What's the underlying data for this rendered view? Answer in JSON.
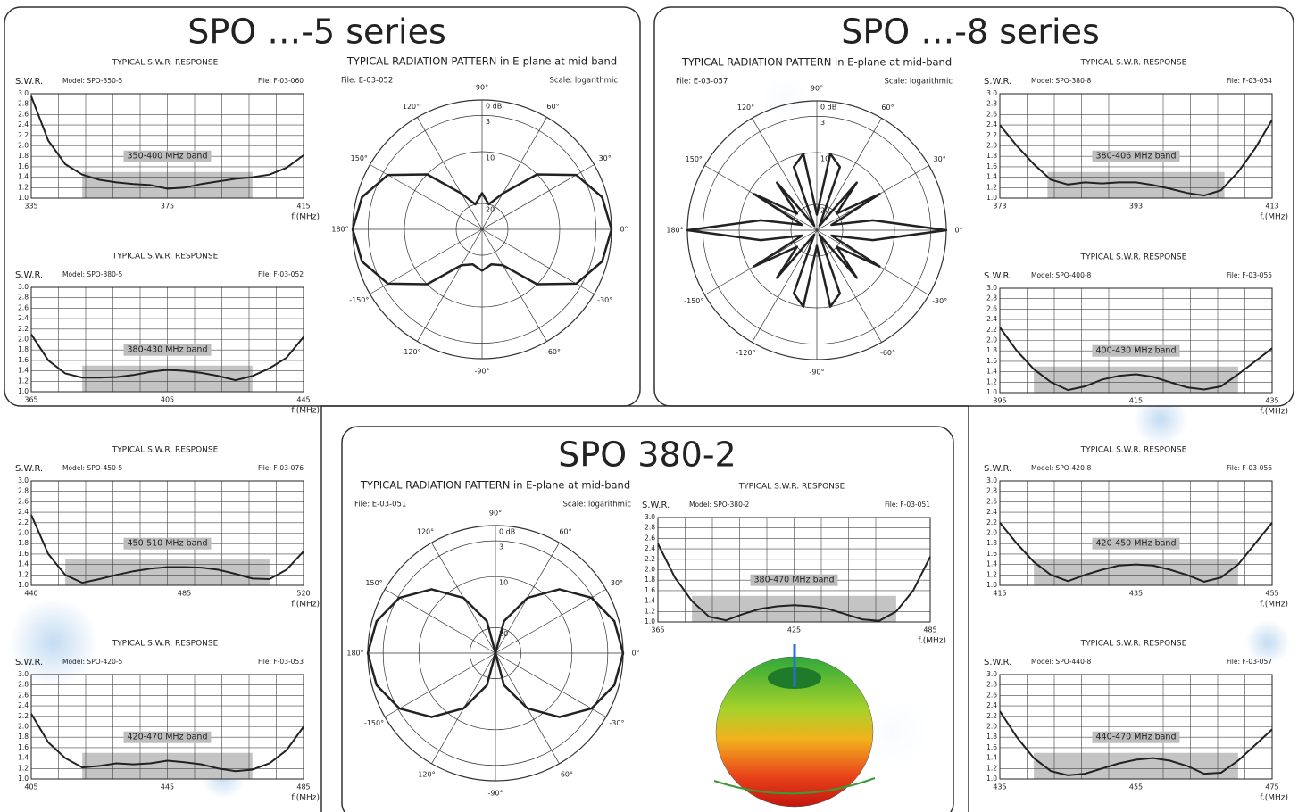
{
  "panels": [
    {
      "title": "SPO …-5 series"
    },
    {
      "title": "SPO …-8 series"
    },
    {
      "title": "SPO 380-2"
    }
  ],
  "chart_data": [
    {
      "type": "line",
      "title": "TYPICAL S.W.R. RESPONSE",
      "y_label": "S.W.R.",
      "model": "Model: SPO-350-5",
      "file": "File: F-03-060",
      "x_label": "f.(MHz)",
      "x": [
        335,
        340,
        345,
        350,
        355,
        360,
        365,
        370,
        375,
        380,
        385,
        390,
        395,
        400,
        405,
        410,
        415
      ],
      "series": [
        {
          "color": "#222222",
          "values": [
            2.95,
            2.1,
            1.65,
            1.45,
            1.35,
            1.3,
            1.27,
            1.25,
            1.18,
            1.2,
            1.27,
            1.32,
            1.37,
            1.4,
            1.45,
            1.58,
            1.82
          ]
        }
      ],
      "xlim": [
        335,
        415
      ],
      "xticks": [
        335,
        375,
        415
      ],
      "ylim": [
        1,
        3
      ],
      "yticks": [
        {
          "value": 1,
          "label": "1.0"
        },
        1.2,
        1.4,
        1.6,
        1.8,
        {
          "value": 2,
          "label": "2.0"
        },
        2.2,
        2.4,
        2.6,
        2.8,
        {
          "value": 3,
          "label": "3.0"
        }
      ],
      "grid": true,
      "band": {
        "label": "350-400 MHz band",
        "x": [
          350,
          400
        ],
        "y": 1.5,
        "color": "#c4c4c4"
      }
    },
    {
      "type": "line",
      "title": "TYPICAL S.W.R. RESPONSE",
      "y_label": "S.W.R.",
      "model": "Model: SPO-380-5",
      "file": "File: F-03-052",
      "x_label": "f.(MHz)",
      "x": [
        365,
        370,
        375,
        380,
        385,
        390,
        395,
        400,
        405,
        410,
        415,
        420,
        425,
        430,
        435,
        440,
        445
      ],
      "series": [
        {
          "color": "#222222",
          "values": [
            2.1,
            1.6,
            1.35,
            1.27,
            1.27,
            1.28,
            1.32,
            1.38,
            1.42,
            1.4,
            1.36,
            1.3,
            1.22,
            1.3,
            1.45,
            1.65,
            2.05
          ]
        }
      ],
      "xlim": [
        365,
        445
      ],
      "xticks": [
        365,
        405,
        445
      ],
      "ylim": [
        1,
        3
      ],
      "yticks": [
        {
          "value": 1,
          "label": "1.0"
        },
        1.2,
        1.4,
        1.6,
        1.8,
        {
          "value": 2,
          "label": "2.0"
        },
        2.2,
        2.4,
        2.6,
        2.8,
        {
          "value": 3,
          "label": "3.0"
        }
      ],
      "grid": true,
      "band": {
        "label": "380-430 MHz band",
        "x": [
          380,
          430
        ],
        "y": 1.5,
        "color": "#c4c4c4"
      }
    },
    {
      "type": "line",
      "title": "TYPICAL S.W.R. RESPONSE",
      "y_label": "S.W.R.",
      "model": "Model: SPO-450-5",
      "file": "File: F-03-076",
      "x_label": "f.(MHz)",
      "x": [
        440,
        445,
        450,
        455,
        460,
        465,
        470,
        475,
        480,
        485,
        490,
        495,
        500,
        505,
        510,
        515,
        520
      ],
      "series": [
        {
          "color": "#222222",
          "values": [
            2.35,
            1.6,
            1.2,
            1.05,
            1.12,
            1.2,
            1.27,
            1.32,
            1.35,
            1.35,
            1.34,
            1.3,
            1.22,
            1.13,
            1.12,
            1.3,
            1.65
          ]
        }
      ],
      "xlim": [
        440,
        520
      ],
      "xticks": [
        440,
        485,
        520
      ],
      "ylim": [
        1,
        3
      ],
      "yticks": [
        {
          "value": 1,
          "label": "1.0"
        },
        1.2,
        1.4,
        1.6,
        1.8,
        {
          "value": 2,
          "label": "2.0"
        },
        2.2,
        2.4,
        2.6,
        2.8,
        {
          "value": 3,
          "label": "3.0"
        }
      ],
      "grid": true,
      "band": {
        "label": "450-510 MHz band",
        "x": [
          450,
          510
        ],
        "y": 1.5,
        "color": "#c4c4c4"
      }
    },
    {
      "type": "line",
      "title": "TYPICAL S.W.R. RESPONSE",
      "y_label": "S.W.R.",
      "model": "Model: SPO-420-5",
      "file": "File: F-03-053",
      "x_label": "f.(MHz)",
      "x": [
        405,
        410,
        415,
        420,
        425,
        430,
        435,
        440,
        445,
        450,
        455,
        460,
        465,
        470,
        475,
        480,
        485
      ],
      "series": [
        {
          "color": "#222222",
          "values": [
            2.25,
            1.7,
            1.4,
            1.22,
            1.25,
            1.3,
            1.28,
            1.3,
            1.35,
            1.32,
            1.28,
            1.2,
            1.15,
            1.18,
            1.3,
            1.55,
            2.0
          ]
        }
      ],
      "xlim": [
        405,
        485
      ],
      "xticks": [
        405,
        445,
        485
      ],
      "ylim": [
        1,
        3
      ],
      "yticks": [
        {
          "value": 1,
          "label": "1.0"
        },
        1.2,
        1.4,
        1.6,
        1.8,
        {
          "value": 2,
          "label": "2.0"
        },
        2.2,
        2.4,
        2.6,
        2.8,
        {
          "value": 3,
          "label": "3.0"
        }
      ],
      "grid": true,
      "band": {
        "label": "420-470 MHz band",
        "x": [
          420,
          470
        ],
        "y": 1.5,
        "color": "#c4c4c4"
      }
    },
    {
      "type": "line",
      "title": "TYPICAL S.W.R. RESPONSE",
      "y_label": "S.W.R.",
      "model": "Model: SPO-380-8",
      "file": "File: F-03-054",
      "x_label": "f.(MHz)",
      "x": [
        373,
        375.5,
        378,
        380.5,
        383,
        385.5,
        388,
        390.5,
        393,
        395.5,
        398,
        400.5,
        403,
        405.5,
        408,
        410.5,
        413
      ],
      "series": [
        {
          "color": "#222222",
          "values": [
            2.4,
            2.0,
            1.65,
            1.35,
            1.26,
            1.3,
            1.28,
            1.3,
            1.3,
            1.25,
            1.18,
            1.1,
            1.05,
            1.15,
            1.5,
            1.95,
            2.5
          ]
        }
      ],
      "xlim": [
        373,
        413
      ],
      "xticks": [
        373,
        393,
        413
      ],
      "ylim": [
        1,
        3
      ],
      "yticks": [
        {
          "value": 1,
          "label": "1.0"
        },
        1.2,
        1.4,
        1.6,
        1.8,
        {
          "value": 2,
          "label": "2.0"
        },
        2.2,
        2.4,
        2.6,
        2.8,
        {
          "value": 3,
          "label": "3.0"
        }
      ],
      "grid": true,
      "band": {
        "label": "380-406 MHz band",
        "x": [
          380,
          406
        ],
        "y": 1.5,
        "color": "#c4c4c4"
      }
    },
    {
      "type": "line",
      "title": "TYPICAL S.W.R. RESPONSE",
      "y_label": "S.W.R.",
      "model": "Model: SPO-400-8",
      "file": "File: F-03-055",
      "x_label": "f.(MHz)",
      "x": [
        395,
        397.5,
        400,
        402.5,
        405,
        407.5,
        410,
        412.5,
        415,
        417.5,
        420,
        422.5,
        425,
        427.5,
        430,
        432.5,
        435
      ],
      "series": [
        {
          "color": "#222222",
          "values": [
            2.25,
            1.8,
            1.45,
            1.2,
            1.05,
            1.12,
            1.25,
            1.32,
            1.35,
            1.3,
            1.2,
            1.1,
            1.06,
            1.12,
            1.35,
            1.6,
            1.85
          ]
        }
      ],
      "xlim": [
        395,
        435
      ],
      "xticks": [
        395,
        415,
        435
      ],
      "ylim": [
        1,
        3
      ],
      "yticks": [
        {
          "value": 1,
          "label": "1.0"
        },
        1.2,
        1.4,
        1.6,
        1.8,
        {
          "value": 2,
          "label": "2.0"
        },
        2.2,
        2.4,
        2.6,
        2.8,
        {
          "value": 3,
          "label": "3.0"
        }
      ],
      "grid": true,
      "band": {
        "label": "400-430 MHz band",
        "x": [
          400,
          430
        ],
        "y": 1.5,
        "color": "#c4c4c4"
      }
    },
    {
      "type": "line",
      "title": "TYPICAL S.W.R. RESPONSE",
      "y_label": "S.W.R.",
      "model": "Model: SPO-420-8",
      "file": "File: F-03-056",
      "x_label": "f.(MHz)",
      "x": [
        415,
        417.5,
        420,
        422.5,
        425,
        427.5,
        430,
        432.5,
        435,
        437.5,
        440,
        442.5,
        445,
        447.5,
        450,
        452.5,
        455
      ],
      "series": [
        {
          "color": "#222222",
          "values": [
            2.2,
            1.8,
            1.45,
            1.2,
            1.08,
            1.2,
            1.3,
            1.38,
            1.4,
            1.38,
            1.3,
            1.2,
            1.07,
            1.15,
            1.4,
            1.8,
            2.2
          ]
        }
      ],
      "xlim": [
        415,
        455
      ],
      "xticks": [
        415,
        435,
        455
      ],
      "ylim": [
        1,
        3
      ],
      "yticks": [
        {
          "value": 1,
          "label": "1.0"
        },
        1.2,
        1.4,
        1.6,
        1.8,
        {
          "value": 2,
          "label": "2.0"
        },
        2.2,
        2.4,
        2.6,
        2.8,
        {
          "value": 3,
          "label": "3.0"
        }
      ],
      "grid": true,
      "band": {
        "label": "420-450 MHz band",
        "x": [
          420,
          450
        ],
        "y": 1.5,
        "color": "#c4c4c4"
      }
    },
    {
      "type": "line",
      "title": "TYPICAL S.W.R. RESPONSE",
      "y_label": "S.W.R.",
      "model": "Model: SPO-440-8",
      "file": "File: F-03-057",
      "x_label": "f.(MHz)",
      "x": [
        435,
        437.5,
        440,
        442.5,
        445,
        447.5,
        450,
        452.5,
        455,
        457.5,
        460,
        462.5,
        465,
        467.5,
        470,
        472.5,
        475
      ],
      "series": [
        {
          "color": "#222222",
          "values": [
            2.3,
            1.8,
            1.4,
            1.15,
            1.07,
            1.1,
            1.2,
            1.3,
            1.37,
            1.4,
            1.35,
            1.25,
            1.1,
            1.12,
            1.35,
            1.65,
            1.95
          ]
        }
      ],
      "xlim": [
        435,
        475
      ],
      "xticks": [
        435,
        455,
        475
      ],
      "ylim": [
        1,
        3
      ],
      "yticks": [
        {
          "value": 1,
          "label": "1.0"
        },
        1.2,
        1.4,
        1.6,
        1.8,
        {
          "value": 2,
          "label": "2.0"
        },
        2.2,
        2.4,
        2.6,
        2.8,
        {
          "value": 3,
          "label": "3.0"
        }
      ],
      "grid": true,
      "band": {
        "label": "440-470 MHz band",
        "x": [
          440,
          470
        ],
        "y": 1.5,
        "color": "#c4c4c4"
      }
    },
    {
      "type": "line",
      "title": "TYPICAL S.W.R. RESPONSE",
      "y_label": "S.W.R.",
      "model": "Model: SPO-380-2",
      "file": "File: F-03-051",
      "x_label": "f.(MHz)",
      "x": [
        365,
        372.5,
        380,
        387.5,
        395,
        402.5,
        410,
        417.5,
        425,
        432.5,
        440,
        447.5,
        455,
        462.5,
        470,
        477.5,
        485
      ],
      "series": [
        {
          "color": "#222222",
          "values": [
            2.5,
            1.85,
            1.4,
            1.1,
            1.03,
            1.15,
            1.25,
            1.3,
            1.32,
            1.3,
            1.25,
            1.15,
            1.05,
            1.02,
            1.2,
            1.6,
            2.25
          ]
        }
      ],
      "xlim": [
        365,
        485
      ],
      "xticks": [
        365,
        425,
        485
      ],
      "ylim": [
        1,
        3
      ],
      "yticks": [
        {
          "value": 1,
          "label": "1.0"
        },
        1.2,
        1.4,
        1.6,
        1.8,
        {
          "value": 2,
          "label": "2.0"
        },
        2.2,
        2.4,
        2.6,
        2.8,
        {
          "value": 3,
          "label": "3.0"
        }
      ],
      "grid": true,
      "band": {
        "label": "380-470 MHz band",
        "x": [
          380,
          470
        ],
        "y": 1.5,
        "color": "#c4c4c4"
      }
    },
    {
      "type": "polar",
      "title": "TYPICAL RADIATION PATTERN in E-plane at  mid-band",
      "file": "File: E-03-052",
      "scale": "Scale: logarithmic",
      "color": "#222222",
      "theta": [
        0,
        15,
        30,
        45,
        60,
        75,
        90,
        105,
        120,
        135,
        150,
        165,
        180,
        195,
        210,
        225,
        240,
        255,
        270,
        285,
        300,
        315,
        330,
        345
      ],
      "values": [
        0,
        1,
        4,
        10,
        17,
        20,
        18,
        20,
        17,
        10,
        4,
        1,
        0,
        1,
        4,
        10,
        17,
        18,
        17,
        18,
        17,
        10,
        4,
        1
      ],
      "rlim": [
        25,
        0
      ],
      "rticks": [
        {
          "value": 0,
          "label": "0 dB"
        },
        3,
        10,
        20
      ],
      "thetaticks": [
        {
          "value": 0,
          "label": "0°"
        },
        {
          "value": 30,
          "label": "30°"
        },
        {
          "value": 60,
          "label": "60°"
        },
        {
          "value": 90,
          "label": "90°"
        },
        {
          "value": 120,
          "label": "120°"
        },
        {
          "value": 150,
          "label": "150°"
        },
        {
          "value": 180,
          "label": "180°"
        },
        {
          "value": -150,
          "label": "-150°"
        },
        {
          "value": -120,
          "label": "-120°"
        },
        {
          "value": -90,
          "label": "-90°"
        },
        {
          "value": -60,
          "label": "-60°"
        },
        {
          "value": -30,
          "label": "-30°"
        }
      ]
    },
    {
      "type": "polar",
      "title": "TYPICAL RADIATION PATTERN in E-plane at mid-band",
      "file": "File: E-03-057",
      "scale": "Scale: logarithmic",
      "color": "#222222",
      "theta": [
        0,
        10,
        20,
        30,
        40,
        50,
        60,
        70,
        80,
        90,
        100,
        110,
        120,
        130,
        140,
        150,
        160,
        170,
        180,
        190,
        200,
        210,
        220,
        230,
        240,
        250,
        260,
        270,
        280,
        290,
        300,
        310,
        320,
        330,
        340,
        350
      ],
      "values": [
        0,
        14,
        22,
        11,
        20,
        13,
        24,
        12,
        10,
        22,
        10,
        12,
        24,
        13,
        20,
        11,
        22,
        14,
        0,
        14,
        22,
        11,
        20,
        13,
        24,
        12,
        10,
        22,
        10,
        12,
        24,
        13,
        20,
        11,
        22,
        14
      ],
      "rlim": [
        25,
        0
      ],
      "rticks": [
        {
          "value": 0,
          "label": "0 dB"
        },
        3,
        10,
        20
      ],
      "thetaticks": [
        {
          "value": 0,
          "label": "0°"
        },
        {
          "value": 30,
          "label": "30°"
        },
        {
          "value": 60,
          "label": "60°"
        },
        {
          "value": 90,
          "label": "90°"
        },
        {
          "value": 120,
          "label": "120°"
        },
        {
          "value": 150,
          "label": "150°"
        },
        {
          "value": 180,
          "label": "180°"
        },
        {
          "value": -150,
          "label": "-150°"
        },
        {
          "value": -120,
          "label": "-120°"
        },
        {
          "value": -90,
          "label": "-90°"
        },
        {
          "value": -60,
          "label": "-60°"
        },
        {
          "value": -30,
          "label": "-30°"
        }
      ]
    },
    {
      "type": "polar",
      "title": "TYPICAL RADIATION PATTERN in E-plane at mid-band",
      "file": "File: E-03-051",
      "scale": "Scale: logarithmic",
      "color": "#222222",
      "theta": [
        0,
        15,
        30,
        45,
        60,
        75,
        90,
        105,
        120,
        135,
        150,
        165,
        180,
        195,
        210,
        225,
        240,
        255,
        270,
        285,
        300,
        315,
        330,
        345
      ],
      "values": [
        0,
        0.9,
        3.3,
        7.3,
        12.5,
        18.5,
        25,
        18.5,
        12.5,
        7.3,
        3.3,
        0.9,
        0,
        0.9,
        3.3,
        7.3,
        12.5,
        18.5,
        25,
        18.5,
        12.5,
        7.3,
        3.3,
        0.9
      ],
      "rlim": [
        25,
        0
      ],
      "rticks": [
        {
          "value": 0,
          "label": "0 dB"
        },
        3,
        10,
        20
      ],
      "thetaticks": [
        {
          "value": 0,
          "label": "0°"
        },
        {
          "value": 30,
          "label": "30°"
        },
        {
          "value": 60,
          "label": "60°"
        },
        {
          "value": 90,
          "label": "90°"
        },
        {
          "value": 120,
          "label": "120°"
        },
        {
          "value": 150,
          "label": "150°"
        },
        {
          "value": 180,
          "label": "180°"
        },
        {
          "value": -150,
          "label": "-150°"
        },
        {
          "value": -120,
          "label": "-120°"
        },
        {
          "value": -90,
          "label": "-90°"
        },
        {
          "value": -60,
          "label": "-60°"
        },
        {
          "value": -30,
          "label": "-30°"
        }
      ]
    }
  ]
}
